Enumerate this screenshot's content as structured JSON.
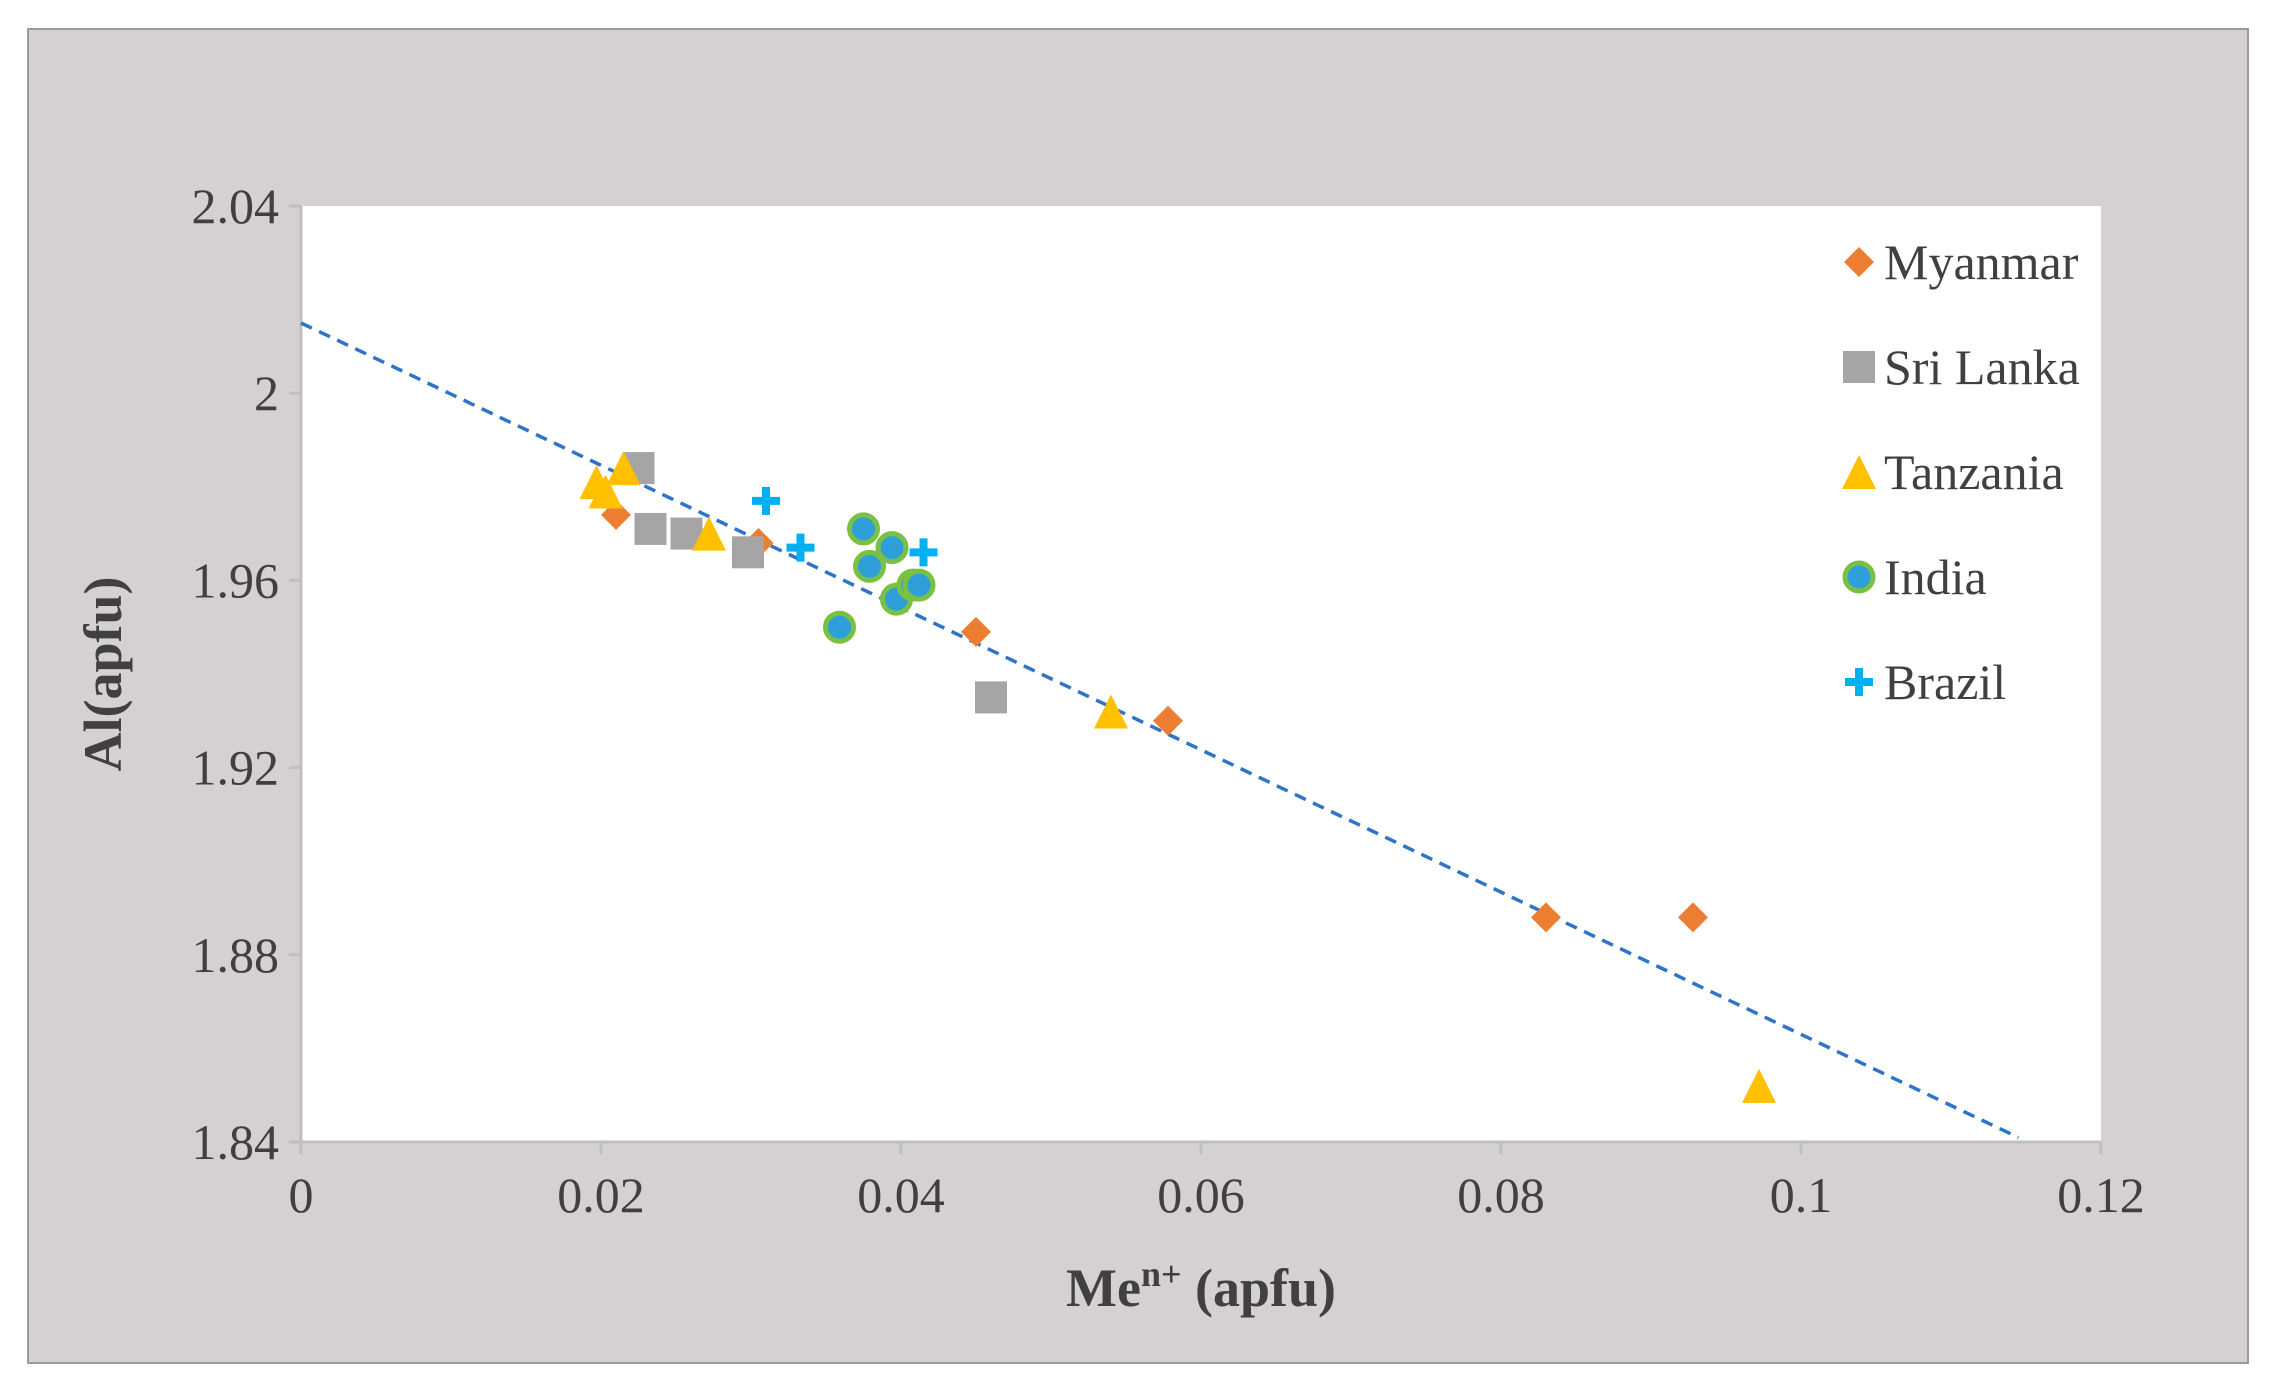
{
  "chart_data": {
    "type": "scatter",
    "title": "",
    "xlabel": "Me",
    "xlabel_superscript": "n+",
    "xlabel_suffix": " (apfu)",
    "ylabel": "Al(apfu)",
    "xlim": [
      0,
      0.12
    ],
    "ylim": [
      1.84,
      2.04
    ],
    "x_ticks": [
      0,
      0.02,
      0.04,
      0.06,
      0.08,
      0.1,
      0.12
    ],
    "x_tick_labels": [
      "0",
      "0.02",
      "0.04",
      "0.06",
      "0.08",
      "0.1",
      "0.12"
    ],
    "y_ticks": [
      1.84,
      1.88,
      1.92,
      1.96,
      2.0,
      2.04
    ],
    "y_tick_labels": [
      "1.84",
      "1.88",
      "1.92",
      "1.96",
      "2",
      "2.04"
    ],
    "grid": false,
    "legend_position": "top-right",
    "trendline": {
      "style": "dashed",
      "color": "#2e74c9",
      "intercept": 2.015,
      "slope": -1.52,
      "x_start": 0,
      "x_end": 0.1145
    },
    "series": [
      {
        "name": "Myanmar",
        "marker": "diamond",
        "color": "#ed7d31",
        "points": [
          [
            0.021,
            1.974
          ],
          [
            0.0305,
            1.968
          ],
          [
            0.045,
            1.949
          ],
          [
            0.0578,
            1.93
          ],
          [
            0.083,
            1.888
          ],
          [
            0.0928,
            1.888
          ]
        ]
      },
      {
        "name": "Sri Lanka",
        "marker": "square",
        "color": "#a5a5a5",
        "points": [
          [
            0.0225,
            1.984
          ],
          [
            0.0233,
            1.971
          ],
          [
            0.0257,
            1.97
          ],
          [
            0.0298,
            1.966
          ],
          [
            0.046,
            1.935
          ]
        ]
      },
      {
        "name": "Tanzania",
        "marker": "triangle",
        "color": "#ffc000",
        "points": [
          [
            0.0197,
            1.981
          ],
          [
            0.0203,
            1.979
          ],
          [
            0.0215,
            1.984
          ],
          [
            0.0272,
            1.97
          ],
          [
            0.054,
            1.932
          ],
          [
            0.0972,
            1.852
          ]
        ]
      },
      {
        "name": "India",
        "marker": "circle",
        "color": "#2e9fd8",
        "edge_color": "#7ac143",
        "points": [
          [
            0.0359,
            1.95
          ],
          [
            0.0375,
            1.971
          ],
          [
            0.0379,
            1.963
          ],
          [
            0.0394,
            1.967
          ],
          [
            0.0397,
            1.956
          ],
          [
            0.0408,
            1.959
          ],
          [
            0.0412,
            1.959
          ]
        ]
      },
      {
        "name": "Brazil",
        "marker": "plus",
        "color": "#00b0f0",
        "points": [
          [
            0.031,
            1.977
          ],
          [
            0.0333,
            1.967
          ],
          [
            0.0415,
            1.966
          ]
        ]
      }
    ]
  }
}
